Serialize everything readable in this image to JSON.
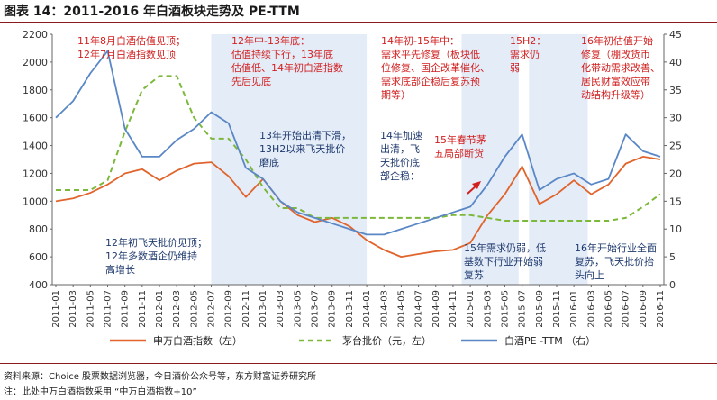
{
  "title": "图表 14：2011-2016 年白酒板块走势及 PE-TTM",
  "chart_data": {
    "type": "line",
    "title": "2011-2016 年白酒板块走势及 PE-TTM",
    "x_labels": [
      "2011-01",
      "2011-03",
      "2011-05",
      "2011-07",
      "2011-09",
      "2011-11",
      "2012-01",
      "2012-03",
      "2012-05",
      "2012-07",
      "2012-09",
      "2012-11",
      "2013-01",
      "2013-03",
      "2013-05",
      "2013-07",
      "2013-09",
      "2013-11",
      "2014-01",
      "2014-03",
      "2014-05",
      "2014-07",
      "2014-09",
      "2014-11",
      "2015-01",
      "2015-03",
      "2015-05",
      "2015-07",
      "2015-09",
      "2015-11",
      "2016-01",
      "2016-03",
      "2016-05",
      "2016-07",
      "2016-09",
      "2016-11"
    ],
    "y_left": {
      "min": 400,
      "max": 2200,
      "ticks": [
        400,
        600,
        800,
        1000,
        1200,
        1400,
        1600,
        1800,
        2000,
        2200
      ]
    },
    "y_right": {
      "min": 0,
      "max": 45,
      "ticks": [
        0,
        5,
        10,
        15,
        20,
        25,
        30,
        35,
        40,
        45
      ]
    },
    "series": [
      {
        "name": "申万白酒指数（左）",
        "axis": "left",
        "color": "#e0642c",
        "style": "solid",
        "values": [
          1000,
          1020,
          1060,
          1120,
          1200,
          1230,
          1150,
          1220,
          1270,
          1280,
          1180,
          1030,
          1160,
          1000,
          900,
          850,
          880,
          820,
          720,
          650,
          600,
          620,
          640,
          650,
          700,
          900,
          1050,
          1250,
          980,
          1050,
          1150,
          1050,
          1120,
          1270,
          1320,
          1300
        ]
      },
      {
        "name": "茅台批价（元，左）",
        "axis": "left",
        "color": "#7cb83a",
        "style": "dashed",
        "values": [
          1080,
          1080,
          1080,
          1150,
          1500,
          1800,
          1900,
          1900,
          1600,
          1450,
          1450,
          1300,
          1100,
          950,
          950,
          880,
          880,
          880,
          880,
          880,
          880,
          880,
          880,
          900,
          900,
          880,
          860,
          860,
          860,
          860,
          860,
          860,
          860,
          880,
          960,
          1050
        ]
      },
      {
        "name": "白酒PE -TTM （右）",
        "axis": "right",
        "color": "#5a87c5",
        "style": "solid",
        "values": [
          30,
          33,
          38,
          42,
          28,
          23,
          23,
          26,
          28,
          31,
          29,
          21,
          19,
          15,
          13,
          12,
          11,
          10,
          9,
          9,
          10,
          11,
          12,
          13,
          14,
          18,
          23,
          27,
          17,
          19,
          20,
          18,
          19,
          27,
          24,
          23
        ]
      }
    ],
    "legend_position": "bottom",
    "shaded_periods": [
      "2012-07 ~ 2014-01",
      "2014-10 ~ 2015-05",
      "2015-06 ~ 2015-12"
    ]
  },
  "legend": {
    "s1": "申万白酒指数（左）",
    "s2": "茅台批价（元，左）",
    "s3": "白酒PE -TTM （右）"
  },
  "annotations": {
    "a1": "11年8月白酒估值见顶；\n12年7月白酒指数见顶",
    "a2": "12年中-13年底：\n估值持续下行，13年底\n估值低、14年初白酒指数\n先后见底",
    "a3": "14年初-15年中：\n需求平先修复（板块低\n位修复、国企改革催化、\n需求底部企稳后复苏预\n期等）",
    "a4": "15H2：\n需求仍\n弱",
    "a5": "16年初估值开始\n修复（棚改货币\n化带动需求改善、\n居民财富效应带\n动结构升级等）",
    "a6": "13年开始出清下滑，\n13H2以来飞天批价\n磨底",
    "a7": "14年加速\n出清，飞\n天批价底\n部企稳：",
    "a8": "15年春节茅\n五局部断货",
    "a9": "12年初飞天批价见顶；\n12年多数酒企仍维持\n高增长",
    "a10": "15年需求仍弱，低\n基数下行业开始弱\n复苏",
    "a11": "16年开始行业全面\n复苏，飞天批价抬\n头向上"
  },
  "source": "资料来源：Choice 股票数据浏览器，今日酒价公众号等，东方财富证券研究所",
  "note": "注：此处中万白酒指数采用 “中万白酒指数÷10”"
}
